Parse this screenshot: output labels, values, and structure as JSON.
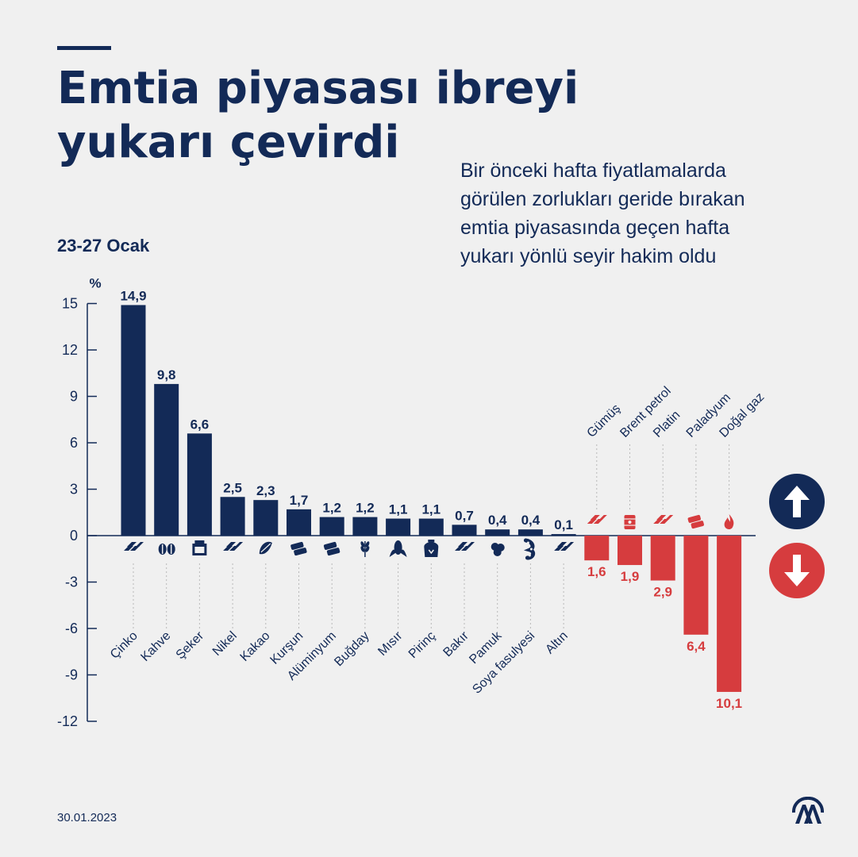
{
  "header": {
    "title_line1": "Emtia piyasası ibreyi",
    "title_line2": "yukarı çevirdi",
    "subtitle_lines": [
      "Bir önceki hafta fiyatlamalarda",
      "görülen zorlukları geride bırakan",
      "emtia piyasasında geçen hafta",
      "yukarı yönlü seyir hakim oldu"
    ],
    "period": "23-27 Ocak"
  },
  "footer": {
    "date": "30.01.2023"
  },
  "colors": {
    "positive": "#132a57",
    "negative": "#d63c3e",
    "background": "#f0f0f0",
    "axis": "#132a57"
  },
  "chart_data": {
    "type": "bar",
    "ylabel": "%",
    "ylim": [
      -12,
      15
    ],
    "yticks": [
      15,
      12,
      9,
      6,
      3,
      0,
      -3,
      -6,
      -9,
      -12
    ],
    "grid": false,
    "legend": "none",
    "categories": [
      "Çinko",
      "Kahve",
      "Şeker",
      "Nikel",
      "Kakao",
      "Kurşun",
      "Alüminyum",
      "Buğday",
      "Mısır",
      "Pirinç",
      "Bakır",
      "Pamuk",
      "Soya fasulyesi",
      "Altın",
      "Gümüş",
      "Brent petrol",
      "Platin",
      "Paladyum",
      "Doğal gaz"
    ],
    "values": [
      14.9,
      9.8,
      6.6,
      2.5,
      2.3,
      1.7,
      1.2,
      1.2,
      1.1,
      1.1,
      0.7,
      0.4,
      0.4,
      0.1,
      -1.6,
      -1.9,
      -2.9,
      -6.4,
      -10.1
    ],
    "value_labels": [
      "14,9",
      "9,8",
      "6,6",
      "2,5",
      "2,3",
      "1,7",
      "1,2",
      "1,2",
      "1,1",
      "1,1",
      "0,7",
      "0,4",
      "0,4",
      "0,1",
      "1,6",
      "1,9",
      "2,9",
      "6,4",
      "10,1"
    ],
    "icons": [
      "metal-bars-icon",
      "coffee-bean-icon",
      "sugar-icon",
      "metal-bars-icon",
      "cocoa-icon",
      "ingots-icon",
      "ingots-icon",
      "wheat-icon",
      "corn-icon",
      "rice-sack-icon",
      "metal-bars-icon",
      "cotton-icon",
      "soybean-icon",
      "metal-bars-icon",
      "metal-bars-icon",
      "oil-barrel-icon",
      "metal-bars-icon",
      "ingots-icon",
      "flame-icon"
    ]
  }
}
